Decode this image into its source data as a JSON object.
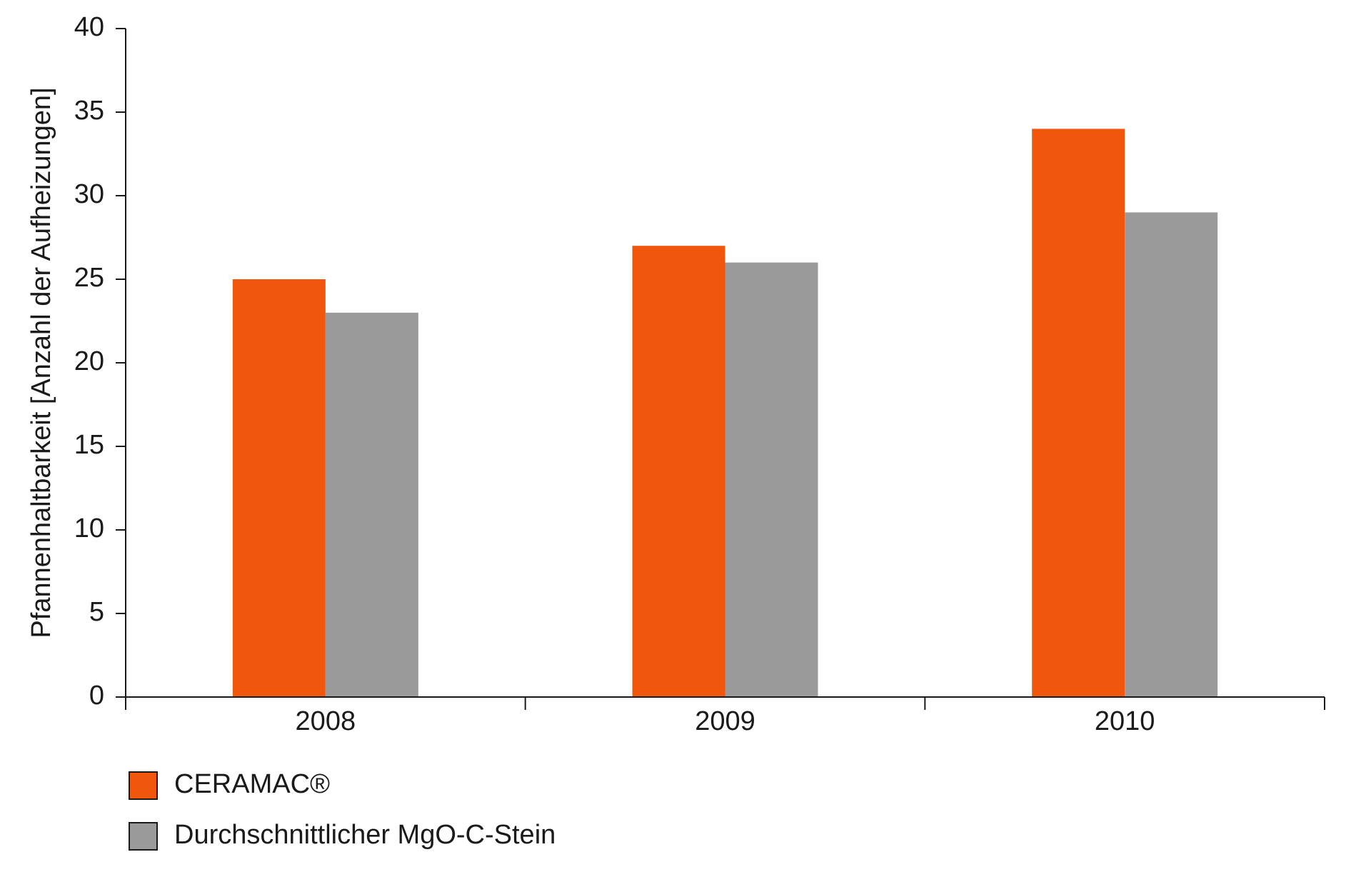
{
  "chart_data": {
    "type": "bar",
    "y_label": "Pfannenhaltbarkeit [Anzahl der Aufheizungen]",
    "categories": [
      "2008",
      "2009",
      "2010"
    ],
    "series": [
      {
        "name": "CERAMAC®",
        "color": "#f0560c",
        "values": [
          25,
          27,
          34
        ]
      },
      {
        "name": "Durchschnittlicher MgO-C-Stein",
        "color": "#9a9a9a",
        "values": [
          23,
          26,
          29
        ]
      }
    ],
    "ylim": [
      0,
      40
    ],
    "yticks": [
      0,
      5,
      10,
      15,
      20,
      25,
      30,
      35,
      40
    ],
    "grid": false
  }
}
